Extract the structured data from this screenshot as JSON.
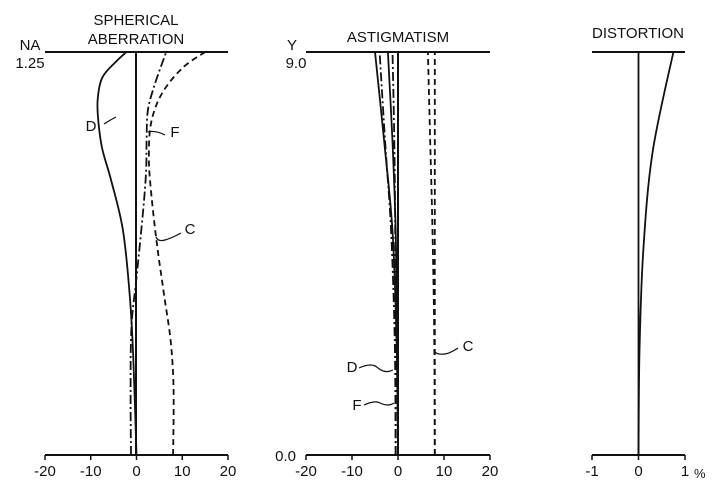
{
  "chart_data": [
    {
      "type": "line",
      "title": "SPHERICAL ABERRATION",
      "title_lines": [
        "SPHERICAL",
        "ABERRATION"
      ],
      "ylabel": "NA",
      "ymax_label": "1.25",
      "xlim": [
        -20,
        20
      ],
      "ylim": [
        0,
        1.25
      ],
      "x_ticks": [
        -20,
        -10,
        0,
        10,
        20
      ],
      "x_tick_labels": [
        "-20",
        "-10",
        "0",
        "10",
        "20"
      ],
      "series": [
        {
          "name": "D",
          "style": "solid",
          "points": [
            [
              0,
              0
            ],
            [
              -0.7,
              0.3
            ],
            [
              -1.5,
              0.5
            ],
            [
              -3,
              0.7
            ],
            [
              -5.5,
              0.85
            ],
            [
              -7.5,
              0.95
            ],
            [
              -8.3,
              1.03
            ],
            [
              -8.5,
              1.1
            ],
            [
              -7.5,
              1.17
            ],
            [
              -4.5,
              1.22
            ],
            [
              -2.2,
              1.25
            ]
          ]
        },
        {
          "name": "F",
          "style": "dash-dot",
          "points": [
            [
              -1.2,
              0
            ],
            [
              -1.3,
              0.2
            ],
            [
              -1.1,
              0.4
            ],
            [
              0.0,
              0.55
            ],
            [
              1.4,
              0.75
            ],
            [
              2.1,
              0.88
            ],
            [
              2.2,
              0.98
            ],
            [
              2.5,
              1.07
            ],
            [
              4.0,
              1.15
            ],
            [
              6.5,
              1.25
            ]
          ]
        },
        {
          "name": "C",
          "style": "dashed",
          "points": [
            [
              8.0,
              0
            ],
            [
              8.1,
              0.2
            ],
            [
              7.5,
              0.35
            ],
            [
              6.0,
              0.5
            ],
            [
              4.5,
              0.65
            ],
            [
              3.3,
              0.8
            ],
            [
              2.7,
              0.92
            ],
            [
              3.2,
              1.03
            ],
            [
              5.5,
              1.12
            ],
            [
              10.0,
              1.2
            ],
            [
              15.0,
              1.25
            ]
          ]
        }
      ]
    },
    {
      "type": "line",
      "title": "ASTIGMATISM",
      "ylabel": "Y",
      "ymax_label": "9.0",
      "ymin_label": "0.0",
      "xlim": [
        -20,
        20
      ],
      "ylim": [
        0,
        9.0
      ],
      "x_ticks": [
        -20,
        -10,
        0,
        10,
        20
      ],
      "x_tick_labels": [
        "-20",
        "-10",
        "0",
        "10",
        "20"
      ],
      "series": [
        {
          "name": "D",
          "style": "solid",
          "points": [
            [
              0,
              0
            ],
            [
              -0.3,
              2.5
            ],
            [
              -1.2,
              5
            ],
            [
              -3.0,
              7
            ],
            [
              -5.0,
              9.0
            ]
          ]
        },
        {
          "name": "D",
          "style": "solid",
          "points": [
            [
              0,
              0
            ],
            [
              -0.1,
              2.5
            ],
            [
              -0.5,
              5
            ],
            [
              -1.2,
              7
            ],
            [
              -2.2,
              9.0
            ]
          ]
        },
        {
          "name": "F",
          "style": "dash-dot",
          "points": [
            [
              -0.5,
              0
            ],
            [
              -0.7,
              2.5
            ],
            [
              -1.5,
              5
            ],
            [
              -2.8,
              7
            ],
            [
              -4.0,
              9.0
            ]
          ]
        },
        {
          "name": "F",
          "style": "dash-dot",
          "points": [
            [
              -0.5,
              0
            ],
            [
              -0.5,
              2.5
            ],
            [
              -0.6,
              5
            ],
            [
              -0.8,
              7
            ],
            [
              -1.2,
              9.0
            ]
          ]
        },
        {
          "name": "C",
          "style": "dashed",
          "points": [
            [
              8.0,
              0
            ],
            [
              7.9,
              2.5
            ],
            [
              7.5,
              5
            ],
            [
              7.0,
              7
            ],
            [
              6.5,
              9.0
            ]
          ]
        },
        {
          "name": "C",
          "style": "dashed",
          "points": [
            [
              8.0,
              0
            ],
            [
              8.0,
              2.5
            ],
            [
              8.0,
              5
            ],
            [
              8.0,
              7
            ],
            [
              8.0,
              9.0
            ]
          ]
        }
      ]
    },
    {
      "type": "line",
      "title": "DISTORTION",
      "xlim": [
        -1,
        1
      ],
      "ylim": [
        0,
        9.0
      ],
      "x_ticks": [
        -1,
        0,
        1
      ],
      "x_tick_labels": [
        "-1",
        "0",
        "1"
      ],
      "x_unit": "%",
      "series": [
        {
          "name": "",
          "style": "solid",
          "points": [
            [
              0,
              0
            ],
            [
              0.02,
              2.25
            ],
            [
              0.1,
              4.5
            ],
            [
              0.3,
              6.75
            ],
            [
              0.75,
              9.0
            ]
          ]
        },
        {
          "name": "",
          "style": "solid",
          "points": [
            [
              0,
              0
            ],
            [
              0,
              9.0
            ]
          ]
        }
      ]
    }
  ],
  "curve_labels": [
    {
      "text": "D",
      "panel": 0
    },
    {
      "text": "F",
      "panel": 0
    },
    {
      "text": "C",
      "panel": 0
    },
    {
      "text": "D",
      "panel": 1
    },
    {
      "text": "F",
      "panel": 1
    },
    {
      "text": "C",
      "panel": 1
    }
  ]
}
